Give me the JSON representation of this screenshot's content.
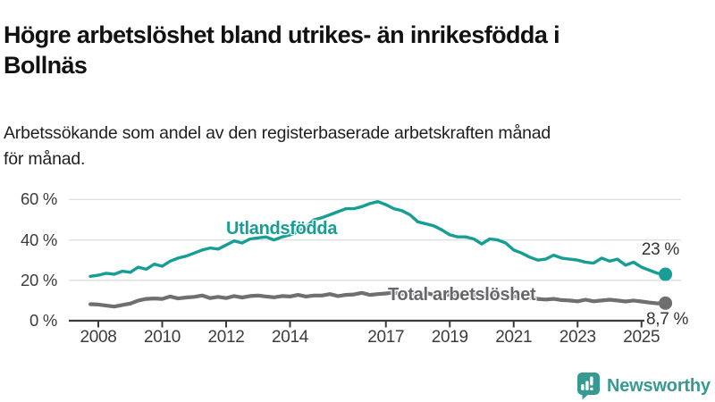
{
  "title_lines": [
    "Högre arbetslöshet bland utrikes- än inrikesfödda i",
    "Bollnäs"
  ],
  "subtitle_lines": [
    "Arbetssökande som andel av den registerbaserade arbetskraften månad",
    "för månad."
  ],
  "branding": {
    "name": "Newsworthy",
    "icon": "bar-chart-speech-bubble",
    "color": "#379a91"
  },
  "colors": {
    "foreign_born_line": "#169e95",
    "total_line": "#6f6f6f",
    "total_label_text": "#67676b",
    "axis_text": "#3c3c3c",
    "grid_line": "#dedede",
    "axis_line": "#3b3b3b",
    "title_text": "#111111"
  },
  "chart_data": {
    "type": "line",
    "title": "Högre arbetslöshet bland utrikes- än inrikesfödda i Bollnäs",
    "subtitle": "Arbetssökande som andel av den registerbaserade arbetskraften månad för månad.",
    "x_unit": "year (monthly observations)",
    "y_unit": "percent of registered labour force",
    "xlim": [
      2007.6,
      2026.3
    ],
    "ylim": [
      0,
      65
    ],
    "grid": "horizontal",
    "legend_position": "inline-labels",
    "y_ticks": [
      0,
      20,
      40,
      60
    ],
    "y_tick_labels": [
      "0 %",
      "20 %",
      "40 %",
      "60 %"
    ],
    "x_ticks": [
      2008,
      2010,
      2012,
      2014,
      2017,
      2019,
      2021,
      2023,
      2025
    ],
    "x_tick_labels": [
      "2008",
      "2010",
      "2012",
      "2014",
      "2017",
      "2019",
      "2021",
      "2023",
      "2025"
    ],
    "series": [
      {
        "name": "Utlandsfödda",
        "color": "#169e95",
        "x_start": 2007.75,
        "x_step": 0.25,
        "values": [
          22.0,
          22.5,
          23.5,
          23.0,
          24.5,
          24.0,
          26.5,
          25.5,
          28.0,
          27.0,
          29.5,
          31.0,
          32.0,
          33.5,
          35.0,
          36.0,
          35.5,
          37.5,
          39.5,
          38.5,
          40.5,
          41.0,
          41.5,
          40.0,
          41.5,
          42.5,
          44.0,
          46.5,
          50.0,
          51.0,
          52.5,
          54.0,
          55.5,
          55.5,
          56.5,
          58.0,
          59.0,
          57.5,
          55.5,
          54.5,
          52.5,
          49.0,
          48.0,
          47.0,
          45.0,
          42.5,
          41.5,
          41.5,
          40.5,
          38.0,
          40.5,
          40.0,
          38.5,
          35.0,
          33.5,
          31.5,
          30.0,
          30.5,
          32.5,
          31.0,
          30.5,
          30.0,
          29.0,
          28.5,
          31.0,
          29.5,
          30.5,
          27.5,
          29.0,
          26.5,
          25.0,
          23.5,
          23.0
        ],
        "end_value": 23,
        "end_label": "23 %"
      },
      {
        "name": "Total arbetslöshet",
        "color": "#6f6f6f",
        "x_start": 2007.75,
        "x_step": 0.25,
        "values": [
          8.2,
          8.0,
          7.5,
          7.0,
          7.8,
          8.5,
          10.0,
          10.8,
          11.0,
          10.8,
          12.0,
          11.0,
          11.5,
          11.8,
          12.5,
          11.2,
          11.8,
          11.2,
          12.2,
          11.5,
          12.2,
          12.5,
          12.0,
          11.6,
          12.2,
          12.0,
          12.8,
          12.0,
          12.5,
          12.5,
          13.2,
          12.2,
          12.8,
          13.0,
          13.8,
          12.8,
          13.2,
          13.5,
          14.0,
          13.2,
          13.6,
          13.2,
          13.8,
          12.8,
          13.2,
          12.8,
          13.2,
          12.2,
          12.8,
          13.0,
          13.5,
          12.8,
          12.2,
          12.0,
          11.8,
          11.2,
          10.8,
          10.5,
          10.8,
          10.2,
          10.0,
          9.6,
          10.4,
          9.6,
          10.0,
          10.4,
          10.0,
          9.5,
          10.0,
          9.5,
          9.0,
          8.6,
          8.7
        ],
        "end_value": 8.7,
        "end_label": "8,7 %"
      }
    ]
  }
}
